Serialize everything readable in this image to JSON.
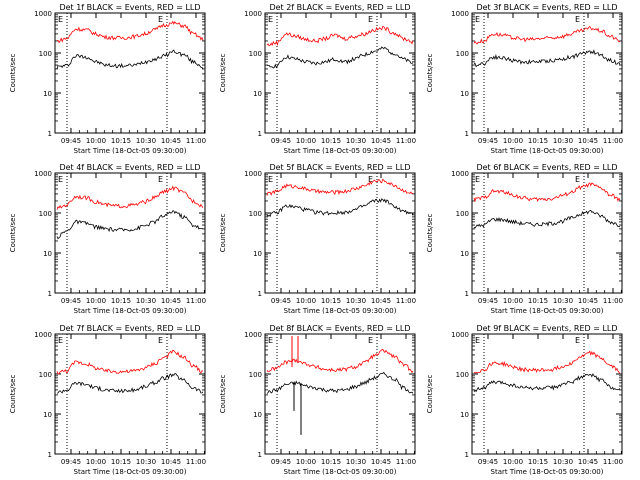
{
  "chart_data": [
    {
      "type": "line",
      "title": "Det 1f BLACK = Events, RED = LLD",
      "ylabel": "Counts/sec",
      "xlabel": "Start Time (18-Oct-05 09:30:00)",
      "markers": [
        "E",
        "E"
      ],
      "ylim": [
        1,
        1000
      ],
      "yscale": "log",
      "series": [
        {
          "name": "Events",
          "color": "#000000",
          "values": [
            45,
            48,
            85,
            80,
            60,
            50,
            48,
            48,
            50,
            60,
            70,
            85,
            110,
            90,
            60,
            45
          ]
        },
        {
          "name": "LLD",
          "color": "#ff0000",
          "values": [
            200,
            230,
            400,
            380,
            300,
            250,
            240,
            240,
            260,
            300,
            380,
            500,
            560,
            480,
            300,
            220
          ]
        }
      ]
    },
    {
      "type": "line",
      "title": "Det 2f BLACK = Events, RED = LLD",
      "ylabel": "Counts/sec",
      "xlabel": "Start Time (18-Oct-05 09:30:00)",
      "markers": [
        "E",
        "E"
      ],
      "ylim": [
        1,
        1000
      ],
      "yscale": "log",
      "series": [
        {
          "name": "Events",
          "color": "#000000",
          "values": [
            45,
            48,
            80,
            70,
            60,
            55,
            60,
            70,
            60,
            70,
            90,
            110,
            130,
            100,
            70,
            55
          ]
        },
        {
          "name": "LLD",
          "color": "#ff0000",
          "values": [
            160,
            180,
            300,
            260,
            220,
            200,
            230,
            280,
            230,
            260,
            300,
            380,
            420,
            320,
            230,
            190
          ]
        }
      ]
    },
    {
      "type": "line",
      "title": "Det 3f BLACK = Events, RED = LLD",
      "ylabel": "Counts/sec",
      "xlabel": "Start Time (18-Oct-05 09:30:00)",
      "markers": [
        "E",
        "E"
      ],
      "ylim": [
        1,
        1000
      ],
      "yscale": "log",
      "series": [
        {
          "name": "Events",
          "color": "#000000",
          "values": [
            50,
            55,
            80,
            75,
            65,
            60,
            60,
            62,
            65,
            70,
            80,
            95,
            110,
            90,
            65,
            55
          ]
        },
        {
          "name": "LLD",
          "color": "#ff0000",
          "values": [
            180,
            200,
            300,
            280,
            240,
            220,
            220,
            230,
            240,
            260,
            300,
            360,
            420,
            360,
            260,
            200
          ]
        }
      ]
    },
    {
      "type": "line",
      "title": "Det 4f BLACK = Events, RED = LLD",
      "ylabel": "Counts/sec",
      "xlabel": "Start Time (18-Oct-05 09:30:00)",
      "markers": [
        "E",
        "E"
      ],
      "ylim": [
        1,
        1000
      ],
      "yscale": "log",
      "series": [
        {
          "name": "Events",
          "color": "#000000",
          "values": [
            25,
            35,
            60,
            55,
            45,
            40,
            38,
            38,
            40,
            48,
            60,
            85,
            110,
            80,
            50,
            38
          ]
        },
        {
          "name": "LLD",
          "color": "#ff0000",
          "values": [
            130,
            160,
            260,
            240,
            190,
            160,
            150,
            150,
            160,
            190,
            240,
            340,
            420,
            320,
            200,
            150
          ]
        }
      ]
    },
    {
      "type": "line",
      "title": "Det 5f BLACK = Events, RED = LLD",
      "ylabel": "Counts/sec",
      "xlabel": "Start Time (18-Oct-05 09:30:00)",
      "markers": [
        "E",
        "E"
      ],
      "ylim": [
        1,
        1000
      ],
      "yscale": "log",
      "series": [
        {
          "name": "Events",
          "color": "#000000",
          "values": [
            90,
            100,
            150,
            140,
            120,
            105,
            100,
            100,
            105,
            120,
            150,
            200,
            210,
            150,
            110,
            90
          ]
        },
        {
          "name": "LLD",
          "color": "#ff0000",
          "values": [
            300,
            340,
            480,
            460,
            400,
            350,
            330,
            330,
            350,
            400,
            480,
            620,
            640,
            500,
            370,
            300
          ]
        }
      ]
    },
    {
      "type": "line",
      "title": "Det 6f BLACK = Events, RED = LLD",
      "ylabel": "Counts/sec",
      "xlabel": "Start Time (18-Oct-05 09:30:00)",
      "markers": [
        "E",
        "E"
      ],
      "ylim": [
        1,
        1000
      ],
      "yscale": "log",
      "series": [
        {
          "name": "Events",
          "color": "#000000",
          "values": [
            45,
            50,
            70,
            68,
            60,
            55,
            52,
            52,
            55,
            62,
            75,
            95,
            110,
            85,
            60,
            50
          ]
        },
        {
          "name": "LLD",
          "color": "#ff0000",
          "values": [
            220,
            240,
            350,
            340,
            280,
            240,
            220,
            220,
            230,
            270,
            330,
            440,
            520,
            420,
            280,
            220
          ]
        }
      ]
    },
    {
      "type": "line",
      "title": "Det 7f BLACK = Events, RED = LLD",
      "ylabel": "Counts/sec",
      "xlabel": "Start Time (18-Oct-05 09:30:00)",
      "markers": [
        "E",
        "E"
      ],
      "ylim": [
        1,
        1000
      ],
      "yscale": "log",
      "series": [
        {
          "name": "Events",
          "color": "#000000",
          "values": [
            35,
            40,
            60,
            55,
            45,
            40,
            38,
            38,
            40,
            48,
            60,
            80,
            95,
            70,
            45,
            35
          ]
        },
        {
          "name": "LLD",
          "color": "#ff0000",
          "values": [
            110,
            120,
            200,
            180,
            140,
            120,
            115,
            115,
            120,
            140,
            180,
            260,
            360,
            260,
            160,
            110
          ]
        }
      ]
    },
    {
      "type": "line",
      "title": "Det 8f BLACK = Events, RED = LLD",
      "ylabel": "Counts/sec",
      "xlabel": "Start Time (18-Oct-05 09:30:00)",
      "markers": [
        "E",
        "E"
      ],
      "ylim": [
        1,
        1000
      ],
      "yscale": "log",
      "series": [
        {
          "name": "Events",
          "color": "#000000",
          "values": [
            35,
            40,
            55,
            60,
            50,
            45,
            40,
            38,
            40,
            48,
            60,
            80,
            100,
            75,
            45,
            35
          ]
        },
        {
          "name": "LLD",
          "color": "#ff0000",
          "values": [
            120,
            140,
            200,
            220,
            180,
            150,
            130,
            125,
            130,
            150,
            190,
            280,
            380,
            280,
            170,
            120
          ]
        }
      ]
    },
    {
      "type": "line",
      "title": "Det 9f BLACK = Events, RED = LLD",
      "ylabel": "Counts/sec",
      "xlabel": "Start Time (18-Oct-05 09:30:00)",
      "markers": [
        "E",
        "E"
      ],
      "ylim": [
        1,
        1000
      ],
      "yscale": "log",
      "series": [
        {
          "name": "Events",
          "color": "#000000",
          "values": [
            40,
            45,
            62,
            60,
            52,
            46,
            44,
            44,
            46,
            52,
            64,
            82,
            95,
            72,
            48,
            40
          ]
        },
        {
          "name": "LLD",
          "color": "#ff0000",
          "values": [
            110,
            125,
            190,
            180,
            150,
            130,
            125,
            125,
            130,
            150,
            190,
            270,
            340,
            250,
            160,
            115
          ]
        }
      ]
    }
  ],
  "shared": {
    "yticks": [
      "1",
      "10",
      "100",
      "1000"
    ],
    "xticks": [
      "09:45",
      "10:00",
      "10:15",
      "10:30",
      "10:45",
      "11:00"
    ]
  }
}
